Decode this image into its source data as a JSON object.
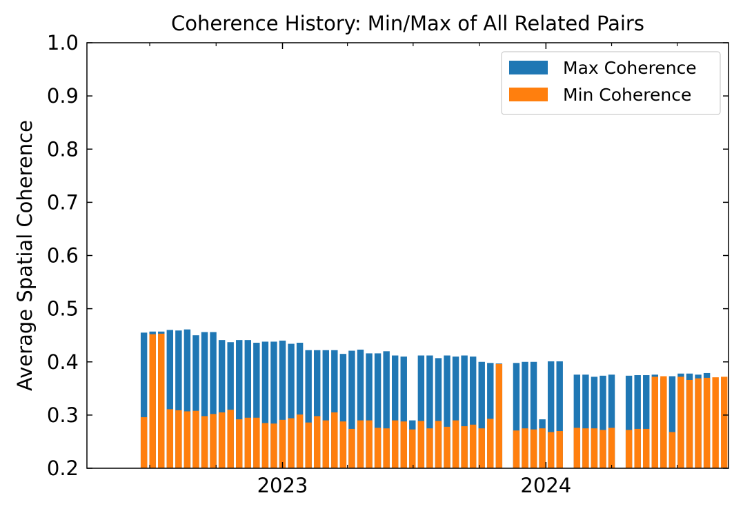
{
  "chart_data": {
    "type": "bar",
    "title": "Coherence History: Min/Max of All Related Pairs",
    "xlabel": "",
    "ylabel": "Average Spatial Coherence",
    "ylim": [
      0.2,
      1.0
    ],
    "xlim": [
      "2022-04-05",
      "2024-09-10"
    ],
    "y_ticks": [
      "0.2",
      "0.3",
      "0.4",
      "0.5",
      "0.6",
      "0.7",
      "0.8",
      "0.9",
      "1.0"
    ],
    "x_ticks": [
      {
        "date": "2023-01-01",
        "label": "2023"
      },
      {
        "date": "2024-01-01",
        "label": "2024"
      }
    ],
    "legend_position": "top-right",
    "grid": false,
    "series": [
      {
        "name": "Max Coherence",
        "color": "#1f77b4",
        "points": [
          [
            "2022-06-23",
            0.455
          ],
          [
            "2022-07-05",
            0.457
          ],
          [
            "2022-07-17",
            0.457
          ],
          [
            "2022-07-29",
            0.46
          ],
          [
            "2022-08-10",
            0.459
          ],
          [
            "2022-08-22",
            0.461
          ],
          [
            "2022-09-03",
            0.45
          ],
          [
            "2022-09-15",
            0.456
          ],
          [
            "2022-09-27",
            0.456
          ],
          [
            "2022-10-09",
            0.441
          ],
          [
            "2022-10-21",
            0.437
          ],
          [
            "2022-11-02",
            0.441
          ],
          [
            "2022-11-14",
            0.441
          ],
          [
            "2022-11-26",
            0.436
          ],
          [
            "2022-12-08",
            0.438
          ],
          [
            "2022-12-20",
            0.438
          ],
          [
            "2023-01-01",
            0.44
          ],
          [
            "2023-01-13",
            0.434
          ],
          [
            "2023-01-25",
            0.436
          ],
          [
            "2023-02-06",
            0.422
          ],
          [
            "2023-02-18",
            0.422
          ],
          [
            "2023-03-02",
            0.422
          ],
          [
            "2023-03-14",
            0.422
          ],
          [
            "2023-03-26",
            0.415
          ],
          [
            "2023-04-07",
            0.421
          ],
          [
            "2023-04-19",
            0.423
          ],
          [
            "2023-05-01",
            0.416
          ],
          [
            "2023-05-13",
            0.416
          ],
          [
            "2023-05-25",
            0.42
          ],
          [
            "2023-06-06",
            0.412
          ],
          [
            "2023-06-18",
            0.41
          ],
          [
            "2023-06-30",
            0.29
          ],
          [
            "2023-07-12",
            0.412
          ],
          [
            "2023-07-24",
            0.412
          ],
          [
            "2023-08-05",
            0.407
          ],
          [
            "2023-08-17",
            0.412
          ],
          [
            "2023-08-29",
            0.41
          ],
          [
            "2023-09-10",
            0.412
          ],
          [
            "2023-09-22",
            0.41
          ],
          [
            "2023-10-04",
            0.4
          ],
          [
            "2023-10-16",
            0.398
          ],
          [
            "2023-10-28",
            0.397
          ],
          [
            "2023-11-21",
            0.398
          ],
          [
            "2023-12-03",
            0.4
          ],
          [
            "2023-12-15",
            0.4
          ],
          [
            "2023-12-27",
            0.292
          ],
          [
            "2024-01-08",
            0.401
          ],
          [
            "2024-01-20",
            0.401
          ],
          [
            "2024-02-13",
            0.376
          ],
          [
            "2024-02-25",
            0.376
          ],
          [
            "2024-03-08",
            0.372
          ],
          [
            "2024-03-20",
            0.374
          ],
          [
            "2024-04-01",
            0.376
          ],
          [
            "2024-04-25",
            0.374
          ],
          [
            "2024-05-07",
            0.375
          ],
          [
            "2024-05-19",
            0.375
          ],
          [
            "2024-05-31",
            0.376
          ],
          [
            "2024-06-12",
            0.369
          ],
          [
            "2024-06-24",
            0.373
          ],
          [
            "2024-07-06",
            0.378
          ],
          [
            "2024-07-18",
            0.378
          ],
          [
            "2024-07-30",
            0.376
          ],
          [
            "2024-08-11",
            0.379
          ]
        ]
      },
      {
        "name": "Min Coherence",
        "color": "#ff7f0e",
        "points": [
          [
            "2022-06-23",
            0.296
          ],
          [
            "2022-07-05",
            0.452
          ],
          [
            "2022-07-17",
            0.453
          ],
          [
            "2022-07-29",
            0.311
          ],
          [
            "2022-08-10",
            0.309
          ],
          [
            "2022-08-22",
            0.307
          ],
          [
            "2022-09-03",
            0.308
          ],
          [
            "2022-09-15",
            0.298
          ],
          [
            "2022-09-27",
            0.302
          ],
          [
            "2022-10-09",
            0.305
          ],
          [
            "2022-10-21",
            0.31
          ],
          [
            "2022-11-02",
            0.292
          ],
          [
            "2022-11-14",
            0.295
          ],
          [
            "2022-11-26",
            0.295
          ],
          [
            "2022-12-08",
            0.285
          ],
          [
            "2022-12-20",
            0.284
          ],
          [
            "2023-01-01",
            0.291
          ],
          [
            "2023-01-13",
            0.294
          ],
          [
            "2023-01-25",
            0.301
          ],
          [
            "2023-02-06",
            0.286
          ],
          [
            "2023-02-18",
            0.298
          ],
          [
            "2023-03-02",
            0.29
          ],
          [
            "2023-03-14",
            0.305
          ],
          [
            "2023-03-26",
            0.288
          ],
          [
            "2023-04-07",
            0.274
          ],
          [
            "2023-04-19",
            0.29
          ],
          [
            "2023-05-01",
            0.29
          ],
          [
            "2023-05-13",
            0.276
          ],
          [
            "2023-05-25",
            0.275
          ],
          [
            "2023-06-06",
            0.29
          ],
          [
            "2023-06-18",
            0.288
          ],
          [
            "2023-06-30",
            0.273
          ],
          [
            "2023-07-12",
            0.289
          ],
          [
            "2023-07-24",
            0.275
          ],
          [
            "2023-08-05",
            0.289
          ],
          [
            "2023-08-17",
            0.278
          ],
          [
            "2023-08-29",
            0.29
          ],
          [
            "2023-09-10",
            0.279
          ],
          [
            "2023-09-22",
            0.282
          ],
          [
            "2023-10-04",
            0.275
          ],
          [
            "2023-10-16",
            0.293
          ],
          [
            "2023-10-28",
            0.396
          ],
          [
            "2023-11-21",
            0.271
          ],
          [
            "2023-12-03",
            0.275
          ],
          [
            "2023-12-15",
            0.273
          ],
          [
            "2023-12-27",
            0.275
          ],
          [
            "2024-01-08",
            0.268
          ],
          [
            "2024-01-20",
            0.27
          ],
          [
            "2024-02-13",
            0.276
          ],
          [
            "2024-02-25",
            0.275
          ],
          [
            "2024-03-08",
            0.275
          ],
          [
            "2024-03-20",
            0.272
          ],
          [
            "2024-04-01",
            0.276
          ],
          [
            "2024-04-25",
            0.272
          ],
          [
            "2024-05-07",
            0.274
          ],
          [
            "2024-05-19",
            0.274
          ],
          [
            "2024-05-31",
            0.372
          ],
          [
            "2024-06-12",
            0.373
          ],
          [
            "2024-06-24",
            0.268
          ],
          [
            "2024-07-06",
            0.372
          ],
          [
            "2024-07-18",
            0.366
          ],
          [
            "2024-07-30",
            0.369
          ],
          [
            "2024-08-11",
            0.37
          ],
          [
            "2024-08-23",
            0.371
          ],
          [
            "2024-09-04",
            0.372
          ]
        ]
      }
    ]
  }
}
